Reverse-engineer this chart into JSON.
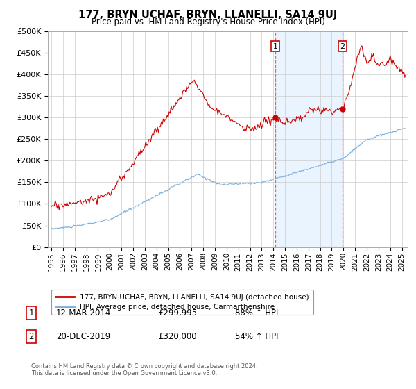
{
  "title": "177, BRYN UCHAF, BRYN, LLANELLI, SA14 9UJ",
  "subtitle": "Price paid vs. HM Land Registry's House Price Index (HPI)",
  "ytick_labels": [
    "£0",
    "£50K",
    "£100K",
    "£150K",
    "£200K",
    "£250K",
    "£300K",
    "£350K",
    "£400K",
    "£450K",
    "£500K"
  ],
  "ytick_vals": [
    0,
    50000,
    100000,
    150000,
    200000,
    250000,
    300000,
    350000,
    400000,
    450000,
    500000
  ],
  "sale1_price": 299995,
  "sale1_t": 2014.167,
  "sale1_label": "1",
  "sale1_text": "12-MAR-2014",
  "sale1_pct": "88% ↑ HPI",
  "sale2_price": 320000,
  "sale2_t": 2019.917,
  "sale2_label": "2",
  "sale2_text": "20-DEC-2019",
  "sale2_pct": "54% ↑ HPI",
  "legend_house": "177, BRYN UCHAF, BRYN, LLANELLI, SA14 9UJ (detached house)",
  "legend_hpi": "HPI: Average price, detached house, Carmarthenshire",
  "footer1": "Contains HM Land Registry data © Crown copyright and database right 2024.",
  "footer2": "This data is licensed under the Open Government Licence v3.0.",
  "line_color_house": "#cc0000",
  "line_color_hpi": "#7aaddc",
  "marker_color": "#cc0000",
  "vline_color": "#dd6666",
  "shade_color": "#ddeeff",
  "background_color": "#ffffff",
  "grid_color": "#cccccc",
  "xlim_left": 1994.7,
  "xlim_right": 2025.5
}
